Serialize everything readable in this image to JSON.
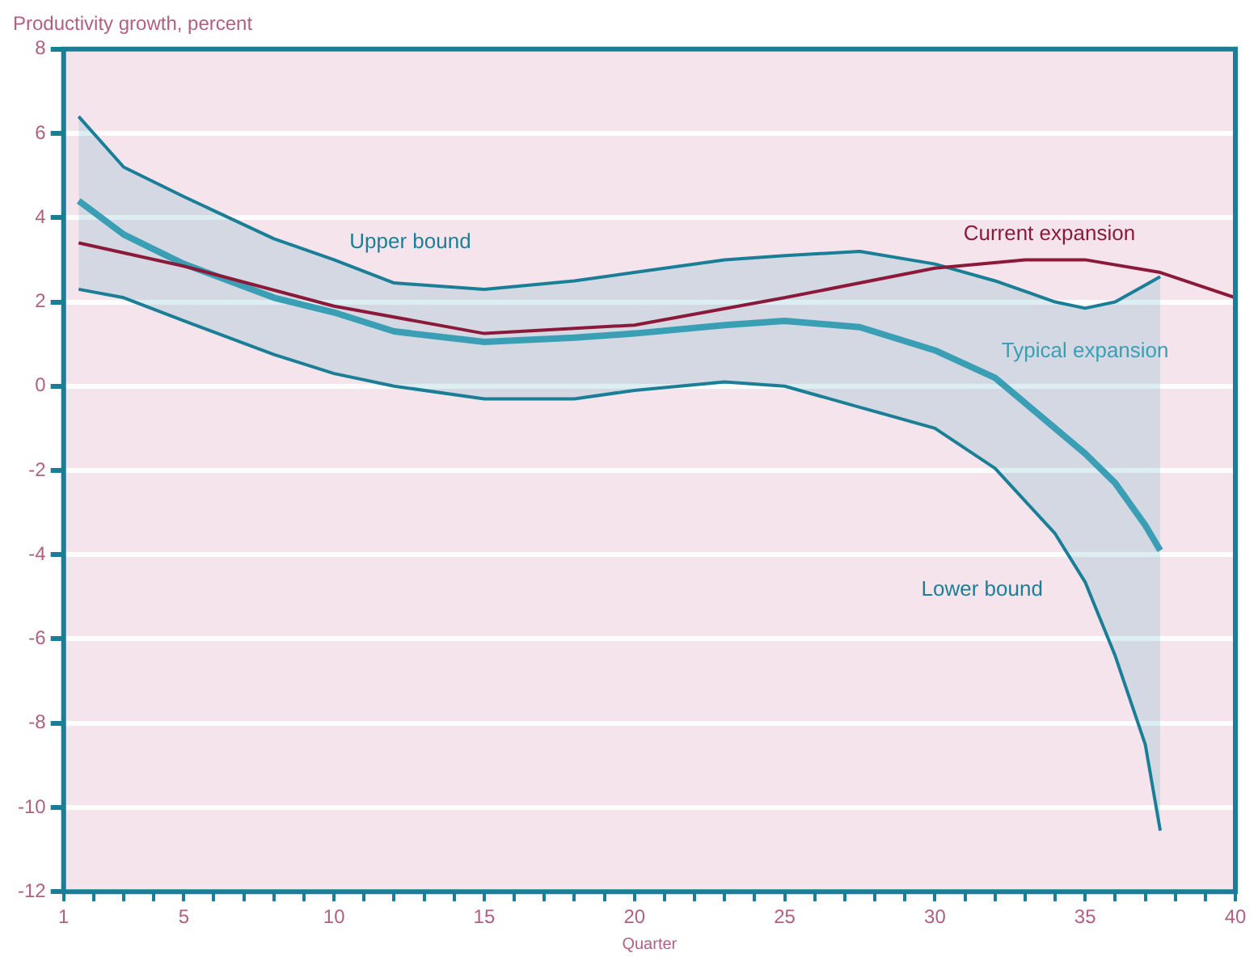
{
  "chart_data": {
    "type": "line",
    "ylabel": "Productivity growth, percent",
    "xlabel": "Quarter",
    "xlim": [
      1,
      40
    ],
    "xticks": [
      1,
      {
        "value": 2,
        "label": null
      },
      {
        "value": 3,
        "label": null
      },
      {
        "value": 4,
        "label": null
      },
      5,
      {
        "value": 6,
        "label": null
      },
      {
        "value": 7,
        "label": null
      },
      {
        "value": 8,
        "label": null
      },
      {
        "value": 9,
        "label": null
      },
      10,
      {
        "value": 11,
        "label": null
      },
      {
        "value": 12,
        "label": null
      },
      {
        "value": 13,
        "label": null
      },
      {
        "value": 14,
        "label": null
      },
      15,
      {
        "value": 16,
        "label": null
      },
      {
        "value": 17,
        "label": null
      },
      {
        "value": 18,
        "label": null
      },
      {
        "value": 19,
        "label": null
      },
      20,
      {
        "value": 21,
        "label": null
      },
      {
        "value": 22,
        "label": null
      },
      {
        "value": 23,
        "label": null
      },
      {
        "value": 24,
        "label": null
      },
      25,
      {
        "value": 26,
        "label": null
      },
      {
        "value": 27,
        "label": null
      },
      {
        "value": 28,
        "label": null
      },
      {
        "value": 29,
        "label": null
      },
      30,
      {
        "value": 31,
        "label": null
      },
      {
        "value": 32,
        "label": null
      },
      {
        "value": 33,
        "label": null
      },
      {
        "value": 34,
        "label": null
      },
      35,
      {
        "value": 36,
        "label": null
      },
      {
        "value": 37,
        "label": null
      },
      {
        "value": 38,
        "label": null
      },
      {
        "value": 39,
        "label": null
      },
      40
    ],
    "ylim": [
      -12,
      8
    ],
    "yticks": [
      -12,
      -10,
      -8,
      -6,
      -4,
      -2,
      0,
      2,
      4,
      6,
      8
    ],
    "grid": "y",
    "legend": false,
    "series": [
      {
        "name": "Typical expansion",
        "color": "#3a9fb5",
        "x": [
          1.5,
          3,
          5,
          8,
          10,
          12,
          15,
          18,
          20,
          23,
          25,
          27.5,
          30,
          32,
          34,
          35,
          36,
          37,
          37.5
        ],
        "values": [
          4.4,
          3.6,
          2.9,
          2.1,
          1.75,
          1.3,
          1.05,
          1.15,
          1.25,
          1.45,
          1.55,
          1.4,
          0.85,
          0.2,
          -1.0,
          -1.6,
          -2.3,
          -3.3,
          -3.9
        ],
        "upper": [
          6.4,
          5.2,
          4.5,
          3.5,
          3.0,
          2.45,
          2.3,
          2.5,
          2.7,
          3.0,
          3.1,
          3.2,
          2.9,
          2.5,
          2.0,
          1.85,
          2.0,
          2.4,
          2.6
        ],
        "lower": [
          2.3,
          2.1,
          1.55,
          0.75,
          0.3,
          0.0,
          -0.3,
          -0.3,
          -0.1,
          0.1,
          0.0,
          -0.5,
          -1.0,
          -1.95,
          -3.5,
          -4.65,
          -6.4,
          -8.5,
          -10.55
        ]
      },
      {
        "name": "Upper bound",
        "color": "#1a7f96",
        "x": [
          1.5,
          3,
          5,
          8,
          10,
          12,
          15,
          18,
          20,
          23,
          25,
          27.5,
          30,
          32,
          34,
          35,
          36,
          37,
          37.5
        ],
        "values": [
          6.4,
          5.2,
          4.5,
          3.5,
          3.0,
          2.45,
          2.3,
          2.5,
          2.7,
          3.0,
          3.1,
          3.2,
          2.9,
          2.5,
          2.0,
          1.85,
          2.0,
          2.4,
          2.6
        ]
      },
      {
        "name": "Lower bound",
        "color": "#1a7f96",
        "x": [
          1.5,
          3,
          5,
          8,
          10,
          12,
          15,
          18,
          20,
          23,
          25,
          27.5,
          30,
          32,
          34,
          35,
          36,
          37,
          37.5
        ],
        "values": [
          2.3,
          2.1,
          1.55,
          0.75,
          0.3,
          0.0,
          -0.3,
          -0.3,
          -0.1,
          0.1,
          0.0,
          -0.5,
          -1.0,
          -1.95,
          -3.5,
          -4.65,
          -6.4,
          -8.5,
          -10.55
        ]
      },
      {
        "name": "Current expansion",
        "color": "#8b1a3a",
        "x": [
          1.5,
          5,
          10,
          15,
          20,
          25,
          30,
          33,
          35,
          37.5,
          40
        ],
        "values": [
          3.4,
          2.85,
          1.9,
          1.25,
          1.45,
          2.1,
          2.8,
          3.0,
          3.0,
          2.7,
          2.1
        ]
      }
    ]
  }
}
